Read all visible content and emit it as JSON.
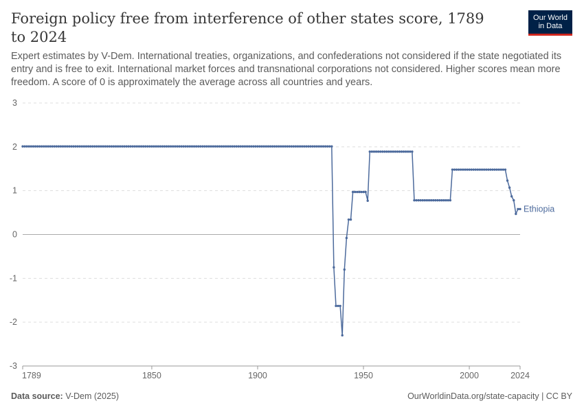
{
  "header": {
    "title": "Foreign policy free from interference of other states score, 1789 to 2024",
    "subtitle": "Expert estimates by V-Dem. International treaties, organizations, and confederations not considered if the state negotiated its entry and is free to exit. International market forces and transnational corporations not considered. Higher scores mean more freedom. A score of 0 is approximately the average across all countries and years."
  },
  "logo": {
    "line1": "Our World",
    "line2": "in Data"
  },
  "footer": {
    "source_label": "Data source:",
    "source_value": "V-Dem (2025)",
    "link": "OurWorldinData.org/state-capacity | CC BY"
  },
  "colors": {
    "series": "#4c6a9c",
    "grid": "#dddddd",
    "axis": "#999999"
  },
  "chart_data": {
    "type": "line",
    "title": "Foreign policy free from interference of other states score, 1789 to 2024",
    "xlabel": "",
    "ylabel": "",
    "xlim": [
      1789,
      2024
    ],
    "ylim": [
      -3,
      3
    ],
    "y_ticks": [
      3,
      2,
      1,
      0,
      -1,
      -2,
      -3
    ],
    "x_ticks": [
      1789,
      1850,
      1900,
      1950,
      2000,
      2024
    ],
    "grid": "horizontal dashed",
    "series": [
      {
        "name": "Ethiopia",
        "segments": [
          {
            "from": 1789,
            "to": 1935,
            "value": 2.01
          },
          {
            "year": 1936,
            "value": -0.75
          },
          {
            "year": 1937,
            "value": -1.63
          },
          {
            "year": 1938,
            "value": -1.63
          },
          {
            "year": 1939,
            "value": -1.63
          },
          {
            "year": 1940,
            "value": -2.3
          },
          {
            "year": 1941,
            "value": -0.8
          },
          {
            "year": 1942,
            "value": -0.08
          },
          {
            "year": 1943,
            "value": 0.34
          },
          {
            "year": 1944,
            "value": 0.34
          },
          {
            "from": 1945,
            "to": 1951,
            "value": 0.97
          },
          {
            "year": 1952,
            "value": 0.77
          },
          {
            "from": 1953,
            "to": 1973,
            "value": 1.89
          },
          {
            "from": 1974,
            "to": 1991,
            "value": 0.78
          },
          {
            "from": 1992,
            "to": 2017,
            "value": 1.48
          },
          {
            "year": 2018,
            "value": 1.23
          },
          {
            "year": 2019,
            "value": 1.07
          },
          {
            "year": 2020,
            "value": 0.87
          },
          {
            "year": 2021,
            "value": 0.78
          },
          {
            "year": 2022,
            "value": 0.47
          },
          {
            "year": 2023,
            "value": 0.58
          },
          {
            "year": 2024,
            "value": 0.58
          }
        ]
      }
    ]
  }
}
